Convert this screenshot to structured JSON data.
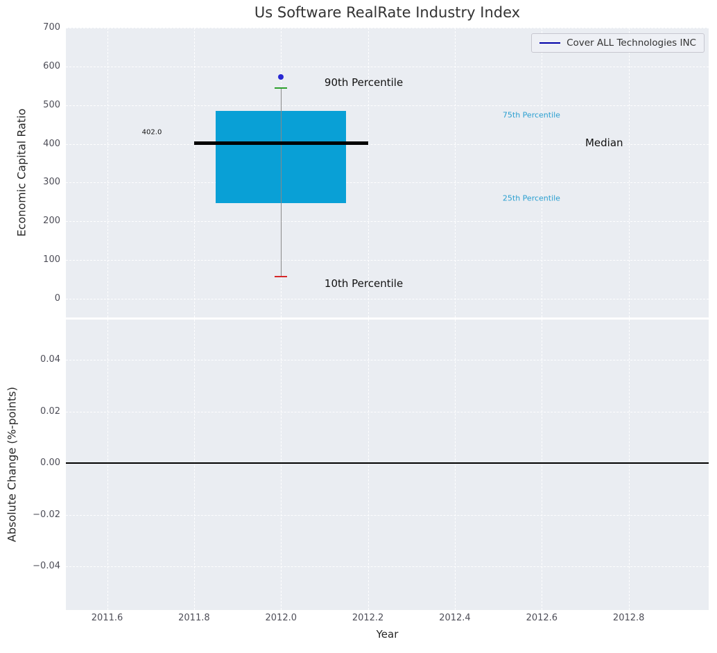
{
  "chart_data": [
    {
      "type": "boxplot",
      "title": "Us Software RealRate Industry Index",
      "ylabel": "Economic Capital Ratio",
      "ylim": [
        -48.3,
        700
      ],
      "yticks": [
        0,
        100,
        200,
        300,
        400,
        500,
        600,
        700
      ],
      "ytick_labels": [
        "0",
        "100",
        "200",
        "300",
        "400",
        "500",
        "600",
        "700"
      ],
      "grid": true,
      "legend": {
        "label": "Cover ALL Technologies INC",
        "color": "#0000a8",
        "position": "upper right"
      },
      "series": {
        "x": 2012.0,
        "p10": 57,
        "p25": 247,
        "median": 402,
        "p75": 485,
        "p90": 545,
        "company_value": 573,
        "box_halfwidth": 0.15,
        "median_halfwidth": 0.2
      },
      "annotations": [
        {
          "text": "90th Percentile",
          "x": 2012.1,
          "y": 558,
          "color": "#111111",
          "size": 15
        },
        {
          "text": "10th Percentile",
          "x": 2012.1,
          "y": 40,
          "color": "#111111",
          "size": 15
        },
        {
          "text": "75th Percentile",
          "x": 2012.51,
          "y": 475,
          "color": "#2a9fd0",
          "size": 11
        },
        {
          "text": "25th Percentile",
          "x": 2012.51,
          "y": 260,
          "color": "#2a9fd0",
          "size": 11
        },
        {
          "text": "Median",
          "x": 2012.7,
          "y": 402,
          "color": "#111111",
          "size": 15
        },
        {
          "text": "402.0",
          "x": 2011.68,
          "y": 430,
          "color": "#111111",
          "size": 10
        }
      ],
      "colors": {
        "box": "#09a0d6",
        "median": "#000000",
        "whisker": "#888888",
        "cap_top": "#2ca02c",
        "cap_bottom": "#d62728",
        "marker": "#2828d2",
        "background": "#eaedf2",
        "gridline": "#ffffff"
      }
    },
    {
      "type": "line",
      "ylabel": "Absolute Change (%-points)",
      "xlabel": "Year",
      "ylim": [
        -0.0569,
        0.0556
      ],
      "yticks": [
        0.04,
        0.02,
        0.0,
        -0.02,
        -0.04
      ],
      "ytick_labels": [
        "0.04",
        "0.02",
        "0.00",
        "−0.02",
        "−0.04"
      ],
      "xlim": [
        2011.505,
        2012.984
      ],
      "xticks": [
        2011.6,
        2011.8,
        2012.0,
        2012.2,
        2012.4,
        2012.6,
        2012.8
      ],
      "xtick_labels": [
        "2011.6",
        "2011.8",
        "2012.0",
        "2012.2",
        "2012.4",
        "2012.6",
        "2012.8"
      ],
      "zero_line": true,
      "series": []
    }
  ]
}
